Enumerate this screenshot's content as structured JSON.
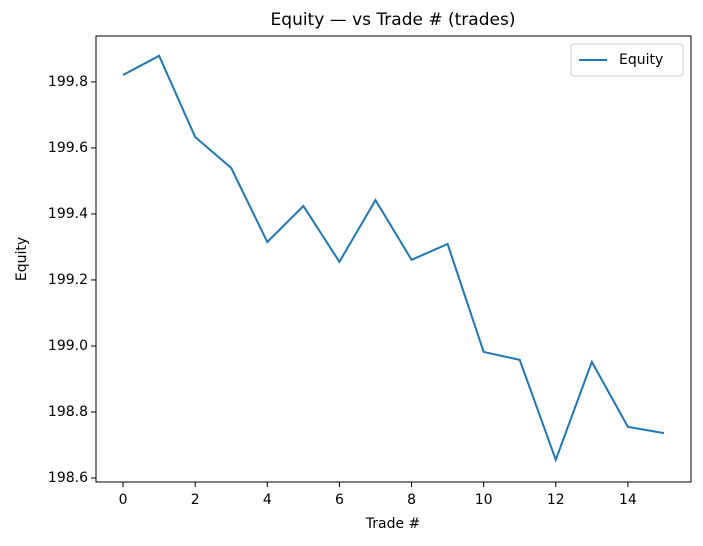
{
  "chart_data": {
    "type": "line",
    "title": "Equity — vs Trade # (trades)",
    "xlabel": "Trade #",
    "ylabel": "Equity",
    "x": [
      0,
      1,
      2,
      3,
      4,
      5,
      6,
      7,
      8,
      9,
      10,
      11,
      12,
      13,
      14,
      15
    ],
    "series": [
      {
        "name": "Equity",
        "color": "#1f77b4",
        "values": [
          199.821,
          199.879,
          199.633,
          199.539,
          199.315,
          199.424,
          199.255,
          199.442,
          199.261,
          199.309,
          198.982,
          198.958,
          198.655,
          198.952,
          198.755,
          198.736
        ]
      }
    ],
    "xlim": [
      -0.75,
      15.75
    ],
    "xticks": [
      0,
      2,
      4,
      6,
      8,
      10,
      12,
      14
    ],
    "ylim": [
      198.588,
      199.939
    ],
    "yticks": [
      198.6,
      198.8,
      {
        "value": 199,
        "label": "199.0"
      },
      199.2,
      199.4,
      199.6,
      199.8
    ],
    "legend": "upper right"
  }
}
